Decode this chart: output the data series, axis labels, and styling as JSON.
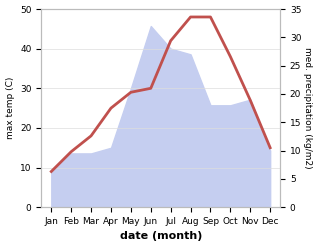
{
  "months": [
    "Jan",
    "Feb",
    "Mar",
    "Apr",
    "May",
    "Jun",
    "Jul",
    "Aug",
    "Sep",
    "Oct",
    "Nov",
    "Dec"
  ],
  "month_positions": [
    1,
    2,
    3,
    4,
    5,
    6,
    7,
    8,
    9,
    10,
    11,
    12
  ],
  "temperature": [
    9,
    14,
    18,
    25,
    29,
    30,
    42,
    48,
    48,
    38,
    27,
    15
  ],
  "precip_kg": [
    6.5,
    9.5,
    9.5,
    10.5,
    21,
    32,
    28,
    27,
    18,
    18,
    19,
    10
  ],
  "temp_color": "#c0504d",
  "precip_fill_color": "#c5cef0",
  "title": "",
  "xlabel": "date (month)",
  "ylabel_left": "max temp (C)",
  "ylabel_right": "med. precipitation (kg/m2)",
  "ylim_left": [
    0,
    50
  ],
  "ylim_right": [
    0,
    35
  ],
  "yticks_left": [
    0,
    10,
    20,
    30,
    40,
    50
  ],
  "yticks_right": [
    0,
    5,
    10,
    15,
    20,
    25,
    30,
    35
  ],
  "bg_color": "#ffffff",
  "line_width": 2.0
}
